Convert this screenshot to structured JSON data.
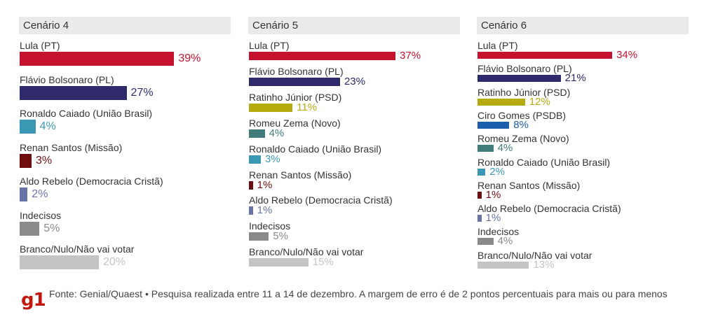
{
  "colors": {
    "lula": "#c4122f",
    "flavio": "#2e2a6b",
    "ratinho": "#b5ab0f",
    "ciro": "#1b5eab",
    "zema": "#3f7c7a",
    "caiado": "#3b98b5",
    "renan": "#6e0d0d",
    "aldo": "#6873a8",
    "indecisos": "#8a8a8a",
    "branco": "#c4c4c4"
  },
  "chart_data": [
    {
      "type": "bar",
      "title": "Cenário 4",
      "unit": "%",
      "categories": [
        "Lula (PT)",
        "Flávio Bolsonaro (PL)",
        "Ronaldo Caiado (União Brasil)",
        "Renan Santos (Missão)",
        "Aldo Rebelo (Democracia Cristã)",
        "Indecisos",
        "Branco/Nulo/Não vai votar"
      ],
      "values": [
        39,
        27,
        4,
        3,
        2,
        5,
        20
      ],
      "value_labels": [
        "39%",
        "27%",
        "4%",
        "3%",
        "2%",
        "5%",
        "20%"
      ],
      "color_keys": [
        "lula",
        "flavio",
        "caiado",
        "renan",
        "aldo",
        "indecisos",
        "branco"
      ]
    },
    {
      "type": "bar",
      "title": "Cenário 5",
      "unit": "%",
      "categories": [
        "Lula (PT)",
        "Flávio Bolsonaro (PL)",
        "Ratinho Júnior (PSD)",
        "Romeu Zema (Novo)",
        "Ronaldo Caiado (União Brasil)",
        "Renan Santos (Missão)",
        "Aldo Rebelo (Democracia Cristã)",
        "Indecisos",
        "Branco/Nulo/Não vai votar"
      ],
      "values": [
        37,
        23,
        11,
        4,
        3,
        1,
        1,
        5,
        15
      ],
      "value_labels": [
        "37%",
        "23%",
        "11%",
        "4%",
        "3%",
        "1%",
        "1%",
        "5%",
        "15%"
      ],
      "color_keys": [
        "lula",
        "flavio",
        "ratinho",
        "zema",
        "caiado",
        "renan",
        "aldo",
        "indecisos",
        "branco"
      ]
    },
    {
      "type": "bar",
      "title": "Cenário 6",
      "unit": "%",
      "categories": [
        "Lula (PT)",
        "Flávio Bolsonaro (PL)",
        "Ratinho Júnior (PSD)",
        "Ciro Gomes (PSDB)",
        "Romeu Zema (Novo)",
        "Ronaldo Caiado (União Brasil)",
        "Renan Santos (Missão)",
        "Aldo Rebelo (Democracia Cristã)",
        "Indecisos",
        "Branco/Nulo/Não vai votar"
      ],
      "values": [
        34,
        21,
        12,
        8,
        4,
        2,
        1,
        1,
        4,
        13
      ],
      "value_labels": [
        "34%",
        "21%",
        "12%",
        "8%",
        "4%",
        "2%",
        "1%",
        "1%",
        "4%",
        "13%"
      ],
      "color_keys": [
        "lula",
        "flavio",
        "ratinho",
        "ciro",
        "zema",
        "caiado",
        "renan",
        "aldo",
        "indecisos",
        "branco"
      ]
    }
  ],
  "footer": {
    "logo": "g1",
    "source": "Fonte: Genial/Quaest • Pesquisa realizada entre 11 a 14 de dezembro. A margem de erro é de 2 pontos percentuais para mais ou para menos"
  }
}
